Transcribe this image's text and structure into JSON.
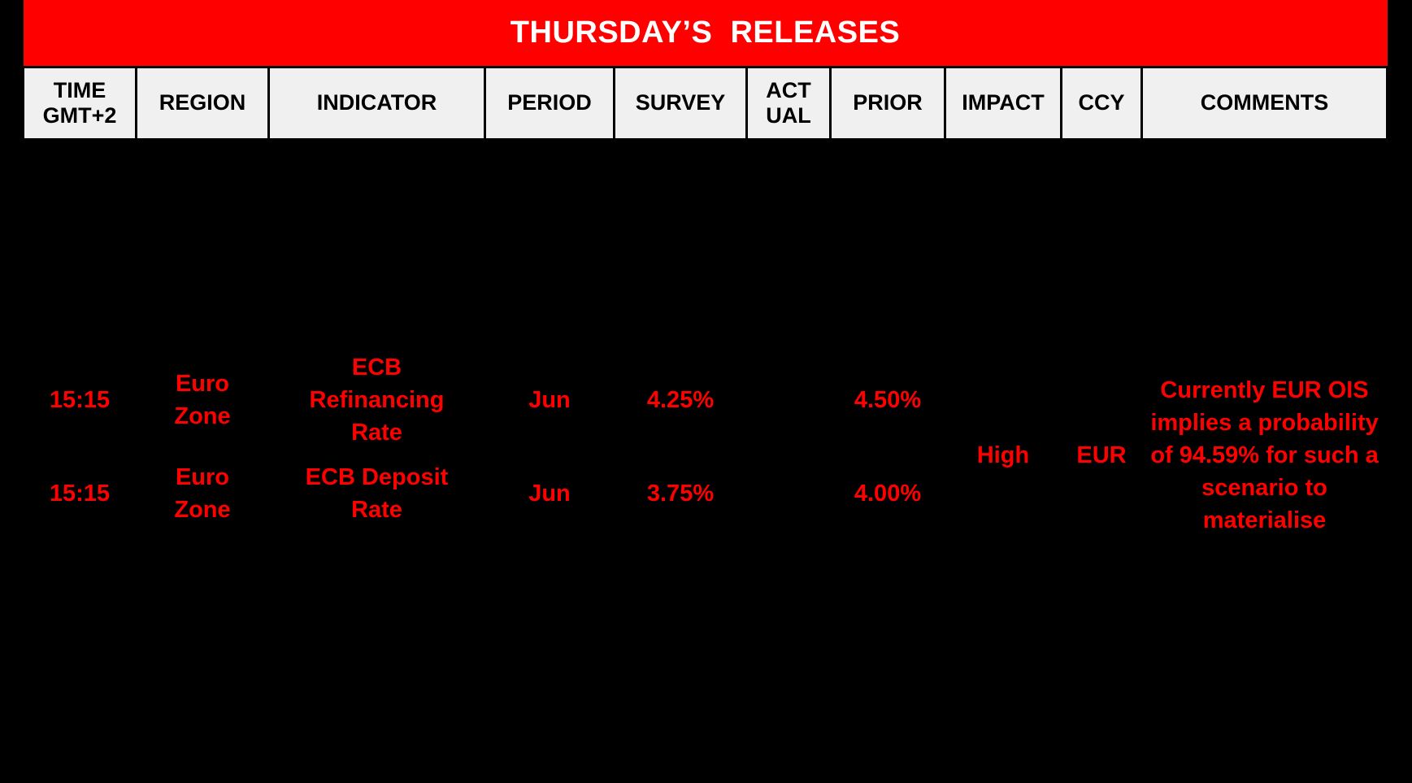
{
  "title_bar": {
    "text": "THURSDAY’S  RELEASES"
  },
  "table": {
    "columns": [
      {
        "id": "time",
        "label": "TIME GMT+2"
      },
      {
        "id": "region",
        "label": "REGION"
      },
      {
        "id": "indicator",
        "label": "INDICATOR"
      },
      {
        "id": "period",
        "label": "PERIOD"
      },
      {
        "id": "survey",
        "label": "SURVEY"
      },
      {
        "id": "actual",
        "label": "ACTUAL"
      },
      {
        "id": "prior",
        "label": "PRIOR"
      },
      {
        "id": "impact",
        "label": "IMPACT"
      },
      {
        "id": "ccy",
        "label": "CCY"
      },
      {
        "id": "comments",
        "label": "COMMENTS"
      }
    ],
    "rows": [
      {
        "time": "15:15",
        "region": "Euro Zone",
        "indicator": "ECB Refinancing Rate",
        "period": "Jun",
        "survey": "4.25%",
        "actual": "",
        "prior": "4.50%"
      },
      {
        "time": "15:15",
        "region": "Euro Zone",
        "indicator": "ECB Deposit Rate",
        "period": "Jun",
        "survey": "3.75%",
        "actual": "",
        "prior": "4.00%"
      }
    ],
    "merged": {
      "impact": "High",
      "ccy": "EUR",
      "comments": "Currently EUR OIS implies a probability of 94.59% for such a scenario to materialise"
    }
  },
  "colors": {
    "page_background": "#000000",
    "title_background": "#FF0000",
    "title_text": "#FFFFFF",
    "header_background": "#F0F0F0",
    "header_text": "#000000",
    "data_text": "#FF0000"
  }
}
